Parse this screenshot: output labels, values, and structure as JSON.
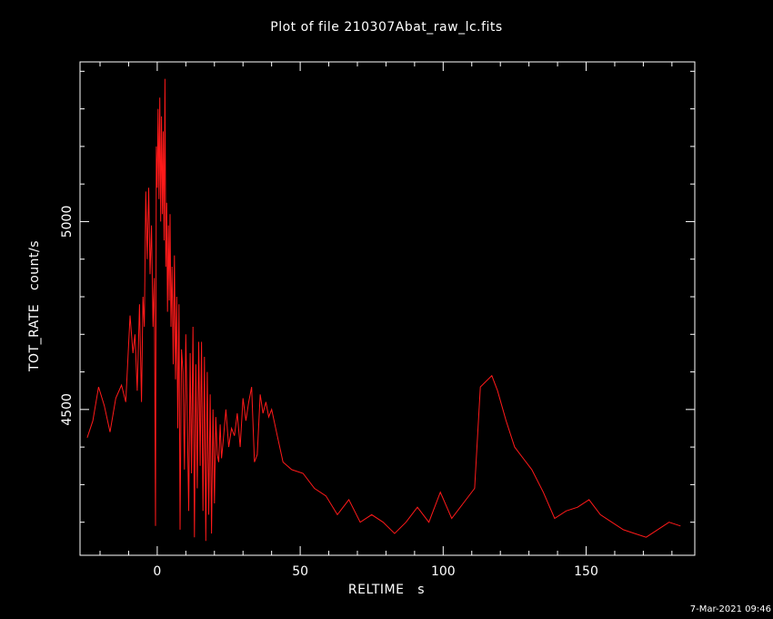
{
  "title": "Plot of file 210307Abat_raw_lc.fits",
  "timestamp": "7-Mar-2021 09:46",
  "colors": {
    "background": "#000000",
    "axes": "#ffffff",
    "series": "#ff1a1a"
  },
  "chart_data": {
    "type": "line",
    "xlabel": "RELTIME   s",
    "ylabel": "TOT_RATE   count/s",
    "xlim": [
      -27,
      188
    ],
    "ylim": [
      4112,
      5425
    ],
    "x_ticks": [
      0,
      50,
      100,
      150
    ],
    "x_tick_labels": [
      "0",
      "50",
      "100",
      "150"
    ],
    "y_ticks": [
      4500,
      5000
    ],
    "y_tick_labels": [
      "4500",
      "5000"
    ],
    "grid": false,
    "series": [
      {
        "x": [
          -24.5,
          -22.5,
          -20.5,
          -18.5,
          -16.5,
          -14.5,
          -12.5,
          -11.0,
          -9.5,
          -8.5,
          -7.8,
          -7.0,
          -6.2,
          -5.5,
          -5.0,
          -4.5,
          -4.0,
          -3.5,
          -3.0,
          -2.5,
          -2.0,
          -1.5,
          -1.0,
          -0.6,
          -0.3,
          0.0,
          0.3,
          0.6,
          0.9,
          1.2,
          1.5,
          1.8,
          2.1,
          2.4,
          2.7,
          3.0,
          3.3,
          3.6,
          3.9,
          4.2,
          4.5,
          4.8,
          5.2,
          5.6,
          6.0,
          6.4,
          6.8,
          7.2,
          7.6,
          8.0,
          8.5,
          9.0,
          9.5,
          10.0,
          10.5,
          11.0,
          11.5,
          12.0,
          12.5,
          13.0,
          13.5,
          14.0,
          14.5,
          15.0,
          15.5,
          16.0,
          16.5,
          17.0,
          17.5,
          18.0,
          18.5,
          19.0,
          19.5,
          20.0,
          20.5,
          21.0,
          21.5,
          22.0,
          22.5,
          23.0,
          24.0,
          25.0,
          26.0,
          27.0,
          28.0,
          29.0,
          30.0,
          31.0,
          32.0,
          33.0,
          34.0,
          35.0,
          36.0,
          37.0,
          38.0,
          39.0,
          40.0,
          42.0,
          44.0,
          47.0,
          51.0,
          55.0,
          59.0,
          63.0,
          67.0,
          71.0,
          75.0,
          79.0,
          83.0,
          87.0,
          91.0,
          95.0,
          99.0,
          103.0,
          107.0,
          111.0,
          113.0,
          117.0,
          119.0,
          122.0,
          125.0,
          128.0,
          131.0,
          135.0,
          139.0,
          143.0,
          147.0,
          151.0,
          155.0,
          159.0,
          163.0,
          167.0,
          171.0,
          175.0,
          179.0,
          183.0
        ],
        "y": [
          4425,
          4470,
          4560,
          4510,
          4440,
          4530,
          4565,
          4520,
          4750,
          4650,
          4700,
          4550,
          4780,
          4520,
          4800,
          4720,
          5080,
          4900,
          5090,
          4860,
          4990,
          4720,
          4850,
          4190,
          5200,
          5090,
          5300,
          5060,
          5330,
          5000,
          5280,
          5020,
          5240,
          4950,
          5380,
          4880,
          5050,
          4760,
          4990,
          4790,
          5020,
          4720,
          4880,
          4620,
          4910,
          4580,
          4800,
          4450,
          4780,
          4180,
          4660,
          4600,
          4340,
          4700,
          4480,
          4230,
          4650,
          4330,
          4720,
          4160,
          4620,
          4290,
          4680,
          4350,
          4680,
          4230,
          4640,
          4150,
          4600,
          4220,
          4540,
          4170,
          4500,
          4250,
          4480,
          4380,
          4360,
          4460,
          4370,
          4410,
          4500,
          4400,
          4450,
          4430,
          4490,
          4400,
          4530,
          4470,
          4520,
          4560,
          4360,
          4380,
          4540,
          4490,
          4520,
          4480,
          4500,
          4430,
          4360,
          4340,
          4330,
          4290,
          4270,
          4220,
          4260,
          4200,
          4220,
          4200,
          4170,
          4200,
          4240,
          4200,
          4280,
          4210,
          4250,
          4290,
          4560,
          4590,
          4550,
          4470,
          4400,
          4370,
          4340,
          4280,
          4210,
          4230,
          4240,
          4260,
          4220,
          4200,
          4180,
          4170,
          4160,
          4180,
          4200,
          4190
        ]
      }
    ]
  }
}
